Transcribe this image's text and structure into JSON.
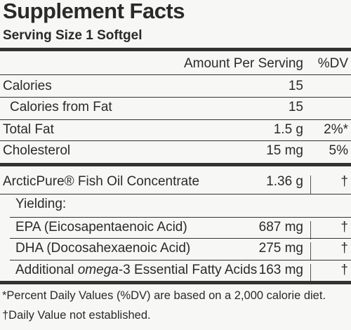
{
  "header": {
    "title": "Supplement Facts",
    "serving_size": "Serving Size 1 Softgel"
  },
  "table": {
    "columns": [
      "Amount Per Serving",
      "%DV"
    ],
    "rows": [
      {
        "name": "Calories",
        "amount": "15"
      },
      {
        "name": "Calories from Fat",
        "amount": "15"
      },
      {
        "name": "Total Fat",
        "amount": "1.5 g",
        "dv": "2%*"
      },
      {
        "name": "Cholesterol",
        "amount": "15 mg",
        "dv": "5%"
      },
      {
        "name": "ArcticPure® Fish Oil Concentrate",
        "amount": "1.36 g",
        "dv": "†"
      },
      {
        "name": "Yielding:"
      },
      {
        "name": "EPA (Eicosapentaenoic Acid)",
        "amount": "687 mg",
        "dv": "†"
      },
      {
        "name": "DHA (Docosahexaenoic Acid)",
        "amount": "275 mg",
        "dv": "†"
      },
      {
        "name_parts": [
          "Additional ",
          "omega",
          "-3 Essential Fatty Acids"
        ],
        "amount": "163 mg",
        "dv": "†"
      }
    ]
  },
  "footnotes": [
    "*Percent Daily Values (%DV) are based on a 2,000 calorie diet.",
    "†Daily Value not established."
  ]
}
